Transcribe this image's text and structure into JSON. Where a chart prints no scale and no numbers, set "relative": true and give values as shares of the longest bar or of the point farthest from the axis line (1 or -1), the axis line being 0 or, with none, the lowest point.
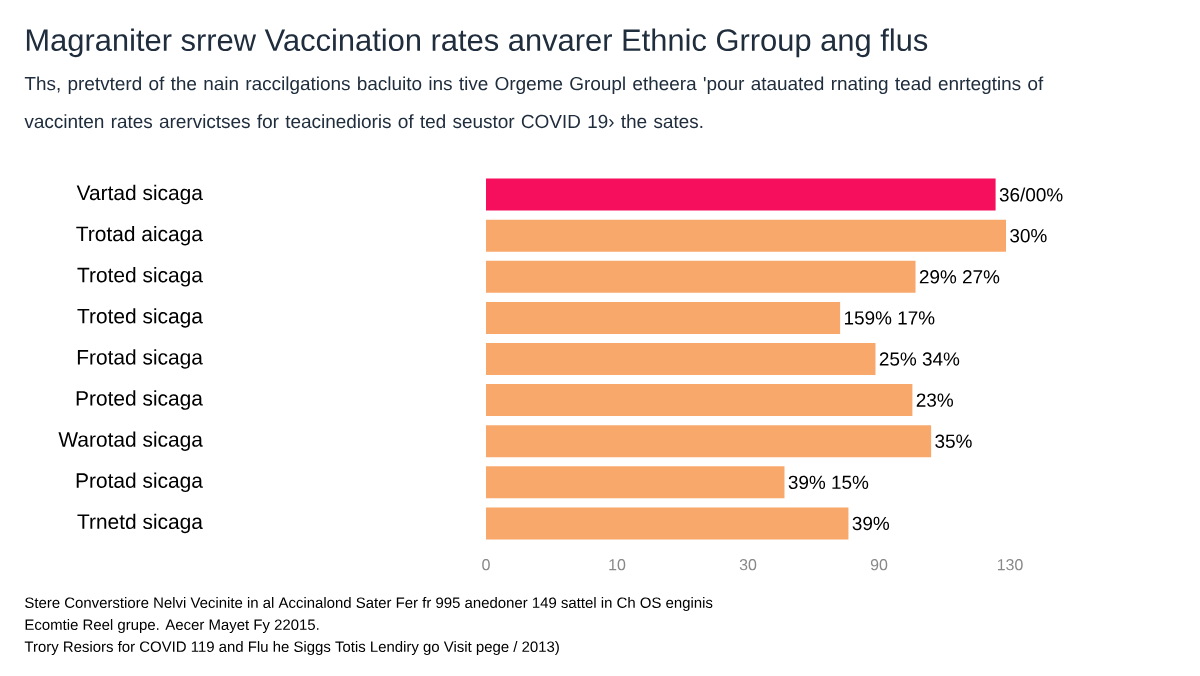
{
  "chart_data": {
    "type": "bar",
    "orientation": "horizontal",
    "relative": true,
    "title": "Magraniter srrew Vaccination rates anvarer Ethnic Grroup ang flus",
    "subtitle": "Ths, pretvterd of the nain raccilgations bacluito ins tive Orgeme Groupl etheera 'pour atauated rnating tead enrtegtins of vaccinten rates arervictses for teacinedioris of ted seustor COVID 19› the sates.",
    "categories": [
      "Vartad sicaga",
      "Trotad aicaga",
      "Troted sicaga",
      "Troted sicaga",
      "Frotad sicaga",
      "Proted sicaga",
      "Warotad sicaga",
      "Protad sicaga",
      "Trnetd sicaga"
    ],
    "values": [
      0.98,
      1,
      0.826,
      0.681,
      0.749,
      0.82,
      0.856,
      0.574,
      0.697
    ],
    "colors": [
      "#f50f5c",
      "#f8a86b",
      "#f8a86b",
      "#f8a86b",
      "#f8a86b",
      "#f8a86b",
      "#f8a86b",
      "#f8a86b",
      "#f8a86b"
    ],
    "annotations": [
      "36/00%",
      "30%",
      "29%      27%",
      "159%      17%",
      "25%     34%",
      "23%",
      "35%",
      "39%   15%",
      "39%",
      "0",
      "10",
      "30",
      "90",
      "130",
      "Stere Converstiore Nelvi Vecinite in al Accinalond Sater Fer fr 995 anedoner 149 sattel in Ch OS enginis",
      "Ecomtie Reel grupe. Aecer Mayet Fy 22015.",
      "Trory Resiors for COVID 119 and Flu he Siggs Totis Lendiry go Visit pege / 2013)"
    ]
  }
}
